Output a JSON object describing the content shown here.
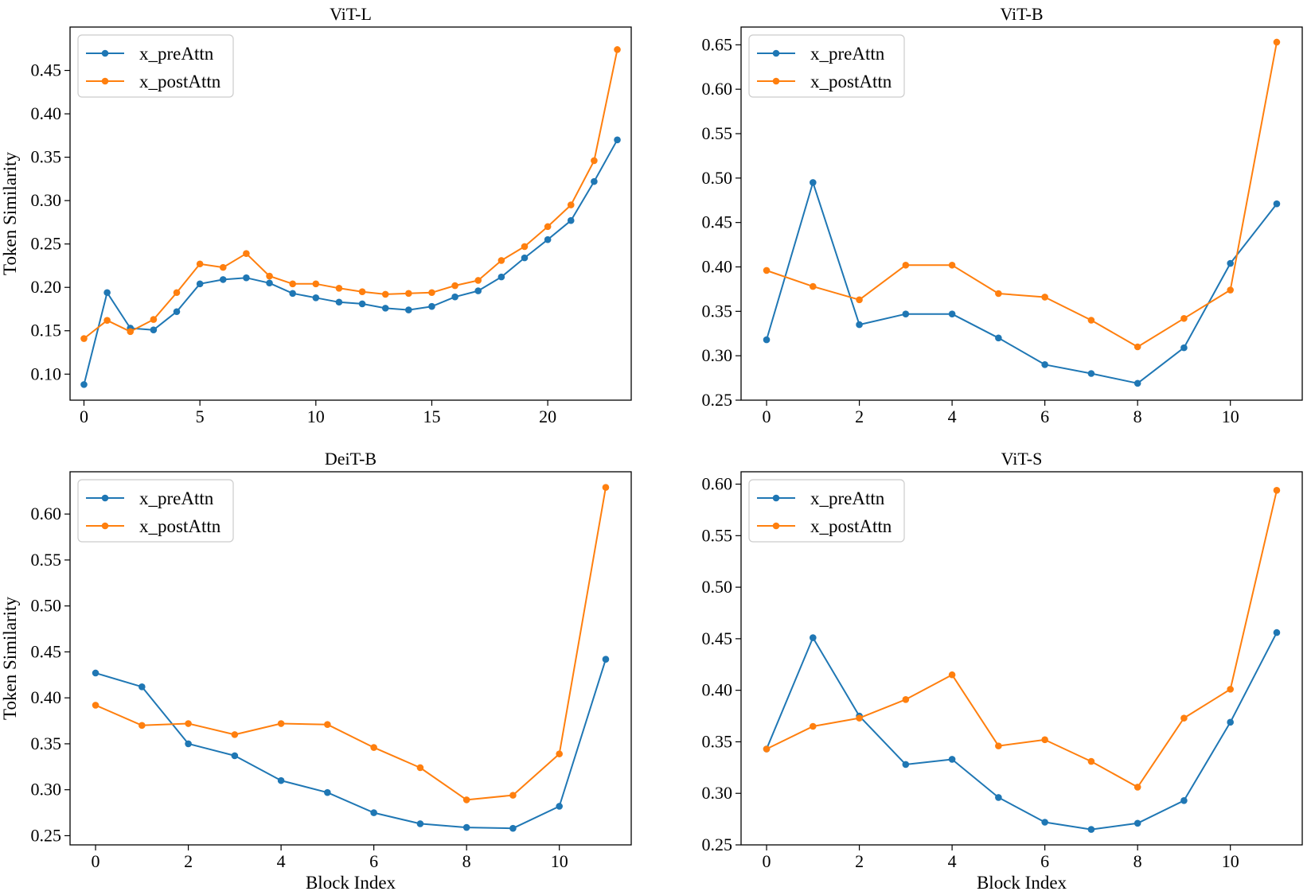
{
  "chart_data": [
    {
      "type": "line",
      "title": "ViT-L",
      "xlabel": "",
      "ylabel": "Token Similarity",
      "xlim": [
        -0.6,
        23.6
      ],
      "ylim": [
        0.07,
        0.5
      ],
      "xticks": [
        0,
        5,
        10,
        15,
        20
      ],
      "yticks": [
        0.1,
        0.15,
        0.2,
        0.25,
        0.3,
        0.35,
        0.4,
        0.45
      ],
      "x": [
        0,
        1,
        2,
        3,
        4,
        5,
        6,
        7,
        8,
        9,
        10,
        11,
        12,
        13,
        14,
        15,
        16,
        17,
        18,
        19,
        20,
        21,
        22,
        23
      ],
      "legend": "upper-left",
      "series": [
        {
          "name": "x_preAttn",
          "color": "#1f77b4",
          "values": [
            0.088,
            0.194,
            0.153,
            0.151,
            0.172,
            0.204,
            0.209,
            0.211,
            0.205,
            0.193,
            0.188,
            0.183,
            0.181,
            0.176,
            0.174,
            0.178,
            0.189,
            0.196,
            0.212,
            0.234,
            0.255,
            0.277,
            0.322,
            0.37
          ]
        },
        {
          "name": "x_postAttn",
          "color": "#ff7f0e",
          "values": [
            0.141,
            0.162,
            0.149,
            0.163,
            0.194,
            0.227,
            0.223,
            0.239,
            0.213,
            0.204,
            0.204,
            0.199,
            0.195,
            0.192,
            0.193,
            0.194,
            0.202,
            0.208,
            0.231,
            0.247,
            0.27,
            0.295,
            0.346,
            0.474
          ]
        }
      ]
    },
    {
      "type": "line",
      "title": "ViT-B",
      "xlabel": "",
      "ylabel": "",
      "xlim": [
        -0.55,
        11.55
      ],
      "ylim": [
        0.25,
        0.67
      ],
      "xticks": [
        0,
        2,
        4,
        6,
        8,
        10
      ],
      "yticks": [
        0.25,
        0.3,
        0.35,
        0.4,
        0.45,
        0.5,
        0.55,
        0.6,
        0.65
      ],
      "x": [
        0,
        1,
        2,
        3,
        4,
        5,
        6,
        7,
        8,
        9,
        10,
        11
      ],
      "legend": "upper-left",
      "series": [
        {
          "name": "x_preAttn",
          "color": "#1f77b4",
          "values": [
            0.318,
            0.495,
            0.335,
            0.347,
            0.347,
            0.32,
            0.29,
            0.28,
            0.269,
            0.309,
            0.404,
            0.471
          ]
        },
        {
          "name": "x_postAttn",
          "color": "#ff7f0e",
          "values": [
            0.396,
            0.378,
            0.363,
            0.402,
            0.402,
            0.37,
            0.366,
            0.34,
            0.31,
            0.342,
            0.374,
            0.653
          ]
        }
      ]
    },
    {
      "type": "line",
      "title": "DeiT-B",
      "xlabel": "Block Index",
      "ylabel": "Token Similarity",
      "xlim": [
        -0.55,
        11.55
      ],
      "ylim": [
        0.24,
        0.646
      ],
      "xticks": [
        0,
        2,
        4,
        6,
        8,
        10
      ],
      "yticks": [
        0.25,
        0.3,
        0.35,
        0.4,
        0.45,
        0.5,
        0.55,
        0.6
      ],
      "x": [
        0,
        1,
        2,
        3,
        4,
        5,
        6,
        7,
        8,
        9,
        10,
        11
      ],
      "legend": "upper-left",
      "series": [
        {
          "name": "x_preAttn",
          "color": "#1f77b4",
          "values": [
            0.427,
            0.412,
            0.35,
            0.337,
            0.31,
            0.297,
            0.275,
            0.263,
            0.259,
            0.258,
            0.282,
            0.442
          ]
        },
        {
          "name": "x_postAttn",
          "color": "#ff7f0e",
          "values": [
            0.392,
            0.37,
            0.372,
            0.36,
            0.372,
            0.371,
            0.346,
            0.324,
            0.289,
            0.294,
            0.339,
            0.629
          ]
        }
      ]
    },
    {
      "type": "line",
      "title": "ViT-S",
      "xlabel": "Block Index",
      "ylabel": "",
      "xlim": [
        -0.55,
        11.55
      ],
      "ylim": [
        0.25,
        0.612
      ],
      "xticks": [
        0,
        2,
        4,
        6,
        8,
        10
      ],
      "yticks": [
        0.25,
        0.3,
        0.35,
        0.4,
        0.45,
        0.5,
        0.55,
        0.6
      ],
      "x": [
        0,
        1,
        2,
        3,
        4,
        5,
        6,
        7,
        8,
        9,
        10,
        11
      ],
      "legend": "upper-left",
      "series": [
        {
          "name": "x_preAttn",
          "color": "#1f77b4",
          "values": [
            0.343,
            0.451,
            0.375,
            0.328,
            0.333,
            0.296,
            0.272,
            0.265,
            0.271,
            0.293,
            0.369,
            0.456
          ]
        },
        {
          "name": "x_postAttn",
          "color": "#ff7f0e",
          "values": [
            0.343,
            0.365,
            0.373,
            0.391,
            0.415,
            0.346,
            0.352,
            0.331,
            0.306,
            0.373,
            0.401,
            0.594
          ]
        }
      ]
    }
  ]
}
